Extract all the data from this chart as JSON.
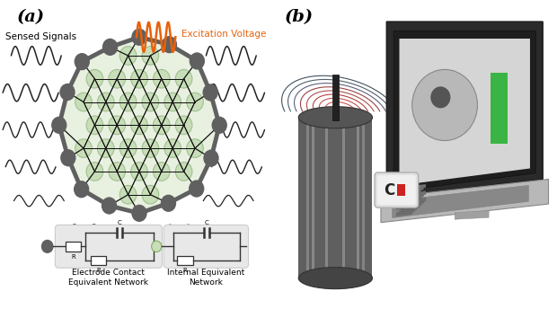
{
  "fig_width": 6.2,
  "fig_height": 3.44,
  "dpi": 100,
  "background_color": "#ffffff",
  "panel_a_label": "(a)",
  "panel_b_label": "(b)",
  "excitation_label": "Excitation Voltage",
  "excitation_color": "#E8620A",
  "sensed_label": "Sensed Signals",
  "electrode_label": "Electrode Contact\nEquivalent Network",
  "internal_label": "Internal Equivalent\nNetwork",
  "dark_node_color": "#606060",
  "light_node_color": "#c8deb8",
  "outer_border_color": "#606060",
  "wave_color": "#222222",
  "circuit_bg": "#e8e8e8"
}
